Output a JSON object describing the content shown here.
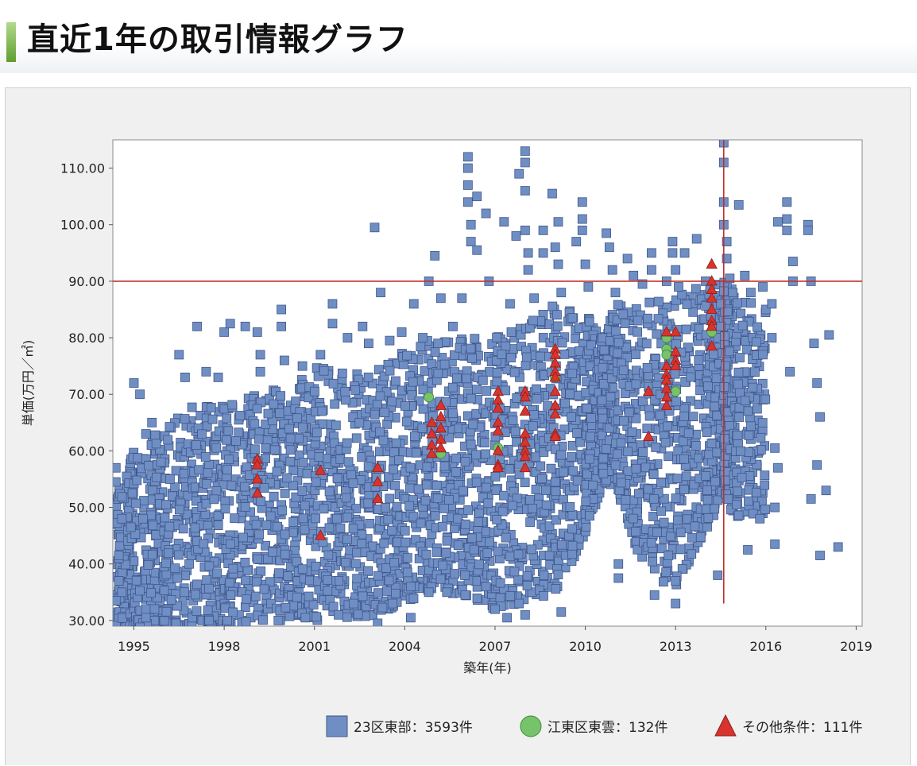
{
  "page": {
    "title": "直近1年の取引情報グラフ"
  },
  "colors": {
    "blue": "#6f8fc4",
    "blue_edge": "#40568a",
    "green": "#77c36b",
    "green_edge": "#3f8a36",
    "red": "#d9332d",
    "red_edge": "#8c1f1a",
    "reference_line": "#c0302a"
  },
  "chart_data": {
    "type": "scatter",
    "xlabel": "築年(年)",
    "ylabel": "単価(万円／㎡)",
    "xlim": [
      1994.3,
      2019.2
    ],
    "ylim": [
      29,
      115
    ],
    "x_ticks": [
      1995,
      1998,
      2001,
      2004,
      2007,
      2010,
      2013,
      2016,
      2019
    ],
    "y_ticks": [
      30,
      40,
      50,
      60,
      70,
      80,
      90,
      100,
      110
    ],
    "y_tick_labels": [
      "30.00",
      "40.00",
      "50.00",
      "60.00",
      "70.00",
      "80.00",
      "90.00",
      "100.00",
      "110.00"
    ],
    "reference_lines": {
      "horizontal_y": 90,
      "vertical_x": 2014.6,
      "vertical_from_y": 33
    },
    "legend": [
      {
        "marker": "square",
        "label": "23区東部：3593件"
      },
      {
        "marker": "circle",
        "label": "江東区東雲：132件"
      },
      {
        "marker": "triangle",
        "label": "その他条件：111件"
      }
    ],
    "series": [
      {
        "marker": "square",
        "points": [
          [
            1994.4,
            57
          ],
          [
            1994.4,
            54.5
          ],
          [
            1994.5,
            41
          ],
          [
            1994.6,
            35
          ],
          [
            1995.0,
            72
          ],
          [
            1995.2,
            70
          ],
          [
            1995.4,
            63
          ],
          [
            1995.6,
            65
          ],
          [
            1995.9,
            58
          ],
          [
            1996.2,
            55
          ],
          [
            1996.5,
            77
          ],
          [
            1996.7,
            73
          ],
          [
            1997.1,
            82
          ],
          [
            1997.4,
            74
          ],
          [
            1997.8,
            73
          ],
          [
            1998.0,
            81
          ],
          [
            1998.2,
            82.5
          ],
          [
            1998.7,
            82
          ],
          [
            1999.1,
            81
          ],
          [
            1999.2,
            77
          ],
          [
            1999.2,
            74
          ],
          [
            1999.9,
            85
          ],
          [
            1999.9,
            82
          ],
          [
            2000.0,
            76
          ],
          [
            2000.6,
            75
          ],
          [
            2001.2,
            77
          ],
          [
            2001.6,
            86
          ],
          [
            2001.6,
            82.5
          ],
          [
            2002.1,
            80
          ],
          [
            2002.6,
            82
          ],
          [
            2002.8,
            79
          ],
          [
            2003.0,
            99.5
          ],
          [
            2003.2,
            88
          ],
          [
            2003.5,
            79.5
          ],
          [
            2003.9,
            81
          ],
          [
            2004.3,
            86
          ],
          [
            2004.6,
            80
          ],
          [
            2004.8,
            90
          ],
          [
            2005.0,
            94.5
          ],
          [
            2005.2,
            87
          ],
          [
            2005.6,
            82
          ],
          [
            2005.9,
            87
          ],
          [
            2006.1,
            112
          ],
          [
            2006.1,
            110
          ],
          [
            2006.1,
            107
          ],
          [
            2006.1,
            104
          ],
          [
            2006.2,
            100
          ],
          [
            2006.2,
            97
          ],
          [
            2006.4,
            105
          ],
          [
            2006.4,
            95.5
          ],
          [
            2006.7,
            102
          ],
          [
            2006.8,
            90
          ],
          [
            2007.3,
            100.5
          ],
          [
            2007.5,
            86
          ],
          [
            2007.7,
            98
          ],
          [
            2007.8,
            109
          ],
          [
            2008.0,
            113
          ],
          [
            2008.0,
            111
          ],
          [
            2008.0,
            106
          ],
          [
            2008.0,
            99
          ],
          [
            2008.1,
            95
          ],
          [
            2008.1,
            92
          ],
          [
            2008.3,
            87
          ],
          [
            2008.6,
            99
          ],
          [
            2008.6,
            95
          ],
          [
            2008.9,
            105.5
          ],
          [
            2009.0,
            96
          ],
          [
            2009.1,
            100.5
          ],
          [
            2009.1,
            93
          ],
          [
            2009.2,
            88
          ],
          [
            2009.7,
            97
          ],
          [
            2009.9,
            104
          ],
          [
            2009.9,
            101
          ],
          [
            2009.9,
            99
          ],
          [
            2010.0,
            93
          ],
          [
            2010.1,
            89
          ],
          [
            2010.7,
            98.5
          ],
          [
            2010.8,
            96
          ],
          [
            2010.9,
            92
          ],
          [
            2011.0,
            88
          ],
          [
            2011.4,
            94
          ],
          [
            2011.6,
            91
          ],
          [
            2011.9,
            89.5
          ],
          [
            2012.2,
            95
          ],
          [
            2012.2,
            92
          ],
          [
            2012.7,
            90
          ],
          [
            2012.9,
            97
          ],
          [
            2012.9,
            95
          ],
          [
            2013.0,
            92
          ],
          [
            2013.1,
            89
          ],
          [
            2013.3,
            95
          ],
          [
            2013.7,
            97.5
          ],
          [
            2014.0,
            90
          ],
          [
            2014.5,
            86
          ],
          [
            2014.5,
            82
          ],
          [
            2014.6,
            114.5
          ],
          [
            2014.6,
            111
          ],
          [
            2014.6,
            104
          ],
          [
            2014.6,
            100
          ],
          [
            2014.7,
            97
          ],
          [
            2014.7,
            94
          ],
          [
            2014.8,
            90.5
          ],
          [
            2014.9,
            88
          ],
          [
            2015.1,
            103.5
          ],
          [
            2015.3,
            91
          ],
          [
            2015.5,
            88
          ],
          [
            2015.9,
            89
          ],
          [
            2016.0,
            85
          ],
          [
            2016.2,
            86
          ],
          [
            2016.4,
            100.5
          ],
          [
            2016.7,
            104
          ],
          [
            2016.7,
            101
          ],
          [
            2016.7,
            99
          ],
          [
            2016.9,
            93.5
          ],
          [
            2016.9,
            90
          ],
          [
            2017.4,
            100
          ],
          [
            2017.4,
            99
          ],
          [
            2017.5,
            90
          ],
          [
            2017.6,
            79
          ],
          [
            2017.7,
            72
          ],
          [
            2017.8,
            66
          ],
          [
            2017.5,
            51.5
          ],
          [
            2017.7,
            57.5
          ],
          [
            2017.8,
            41.5
          ],
          [
            2018.0,
            53
          ],
          [
            2018.1,
            80.5
          ],
          [
            2018.4,
            43
          ],
          [
            2016.8,
            74
          ],
          [
            2016.2,
            80
          ],
          [
            2016.3,
            60.5
          ],
          [
            2016.4,
            57
          ],
          [
            2016.3,
            50
          ],
          [
            2016.3,
            43.5
          ],
          [
            2015.4,
            42.5
          ],
          [
            2015.8,
            48
          ],
          [
            2014.4,
            38
          ],
          [
            2013.0,
            33
          ],
          [
            2013.0,
            37
          ],
          [
            2012.3,
            34.5
          ],
          [
            2011.1,
            40
          ],
          [
            2011.1,
            37.5
          ],
          [
            2010.6,
            56
          ],
          [
            2009.2,
            31.5
          ],
          [
            2008.0,
            31
          ],
          [
            2007.8,
            33
          ],
          [
            2007.4,
            30.5
          ],
          [
            2007.0,
            32
          ],
          [
            2006.7,
            36
          ],
          [
            2006.0,
            38
          ],
          [
            2005.4,
            35
          ],
          [
            2004.8,
            35
          ],
          [
            2004.2,
            36
          ],
          [
            2003.1,
            29.5
          ],
          [
            2003.6,
            33
          ],
          [
            2004.2,
            30.5
          ],
          [
            2002.3,
            33
          ],
          [
            2001.8,
            31
          ],
          [
            2000.7,
            30.5
          ],
          [
            1999.8,
            30
          ],
          [
            1998.1,
            30
          ],
          [
            1997.5,
            30
          ],
          [
            1996.4,
            29.5
          ],
          [
            1995.4,
            30.5
          ],
          [
            1995.2,
            28.8
          ],
          [
            1994.5,
            37
          ],
          [
            1994.4,
            33.5
          ],
          [
            1994.6,
            48
          ],
          [
            1994.9,
            46.5
          ],
          [
            1994.5,
            41.5
          ],
          [
            1995.3,
            48
          ]
        ],
        "dense_region": [
          [
            1994.4,
            29,
            53
          ],
          [
            1995,
            29,
            60
          ],
          [
            1996,
            29,
            65
          ],
          [
            1997,
            29,
            68
          ],
          [
            1998,
            29,
            69
          ],
          [
            1999,
            30,
            70
          ],
          [
            2000,
            30,
            72
          ],
          [
            2001,
            30,
            75
          ],
          [
            2002,
            30,
            74
          ],
          [
            2003,
            31,
            74
          ],
          [
            2004,
            33,
            78
          ],
          [
            2005,
            36,
            80
          ],
          [
            2006,
            34,
            80
          ],
          [
            2007,
            32,
            80
          ],
          [
            2008,
            33,
            82
          ],
          [
            2009,
            35,
            86
          ],
          [
            2010,
            45,
            85
          ],
          [
            2010.5,
            53,
            80
          ],
          [
            2011,
            54,
            86
          ],
          [
            2012,
            38,
            86
          ],
          [
            2013,
            36,
            88
          ],
          [
            2014,
            46,
            90
          ],
          [
            2014.6,
            52,
            90
          ],
          [
            2015,
            48,
            88
          ],
          [
            2016,
            49,
            85
          ]
        ],
        "dense_counts": [
          150,
          150,
          150,
          150,
          150,
          150,
          150,
          150,
          150,
          150,
          150,
          150,
          150,
          150,
          150,
          150,
          150,
          150,
          150,
          150,
          150,
          150,
          150,
          150
        ]
      },
      {
        "marker": "circle",
        "points": [
          [
            2004.8,
            69.5
          ],
          [
            2005.2,
            59.5
          ],
          [
            2007.1,
            60.5
          ],
          [
            2009.0,
            73
          ],
          [
            2012.7,
            80
          ],
          [
            2012.7,
            78
          ],
          [
            2012.7,
            77
          ],
          [
            2013.0,
            70.5
          ],
          [
            2014.2,
            81
          ]
        ]
      },
      {
        "marker": "triangle",
        "points": [
          [
            1999.1,
            58.5
          ],
          [
            1999.1,
            57.5
          ],
          [
            1999.1,
            55
          ],
          [
            1999.1,
            52.5
          ],
          [
            2001.2,
            56.5
          ],
          [
            2001.2,
            45
          ],
          [
            2003.1,
            57
          ],
          [
            2003.1,
            54.5
          ],
          [
            2003.1,
            51.5
          ],
          [
            2004.9,
            65
          ],
          [
            2004.9,
            63
          ],
          [
            2004.9,
            61
          ],
          [
            2004.9,
            59.5
          ],
          [
            2005.2,
            68
          ],
          [
            2005.2,
            66
          ],
          [
            2005.2,
            64
          ],
          [
            2005.2,
            62
          ],
          [
            2005.2,
            60.5
          ],
          [
            2007.1,
            70.5
          ],
          [
            2007.1,
            69
          ],
          [
            2007.1,
            67.5
          ],
          [
            2007.1,
            65
          ],
          [
            2007.1,
            63.5
          ],
          [
            2007.1,
            60
          ],
          [
            2007.1,
            57.5
          ],
          [
            2007.1,
            57
          ],
          [
            2008.0,
            70.5
          ],
          [
            2008.0,
            69.5
          ],
          [
            2008.0,
            67
          ],
          [
            2008.0,
            63
          ],
          [
            2008.0,
            61.5
          ],
          [
            2008.0,
            60
          ],
          [
            2008.0,
            59
          ],
          [
            2008.0,
            57
          ],
          [
            2009.0,
            78
          ],
          [
            2009.0,
            77
          ],
          [
            2009.0,
            75.5
          ],
          [
            2009.0,
            74
          ],
          [
            2009.0,
            73
          ],
          [
            2009.0,
            70.5
          ],
          [
            2009.0,
            68
          ],
          [
            2009.0,
            66.5
          ],
          [
            2009.0,
            63
          ],
          [
            2009.0,
            62.5
          ],
          [
            2012.1,
            70.5
          ],
          [
            2012.1,
            62.5
          ],
          [
            2012.7,
            81
          ],
          [
            2012.7,
            75
          ],
          [
            2012.7,
            73.5
          ],
          [
            2012.7,
            72.5
          ],
          [
            2012.7,
            71
          ],
          [
            2012.7,
            69.5
          ],
          [
            2012.7,
            68
          ],
          [
            2013.0,
            81
          ],
          [
            2013.0,
            77.5
          ],
          [
            2013.0,
            76
          ],
          [
            2013.0,
            75
          ],
          [
            2014.2,
            93
          ],
          [
            2014.2,
            90
          ],
          [
            2014.2,
            88.5
          ],
          [
            2014.2,
            87
          ],
          [
            2014.2,
            85
          ],
          [
            2014.2,
            83
          ],
          [
            2014.2,
            82
          ],
          [
            2014.2,
            78.5
          ]
        ]
      }
    ]
  }
}
